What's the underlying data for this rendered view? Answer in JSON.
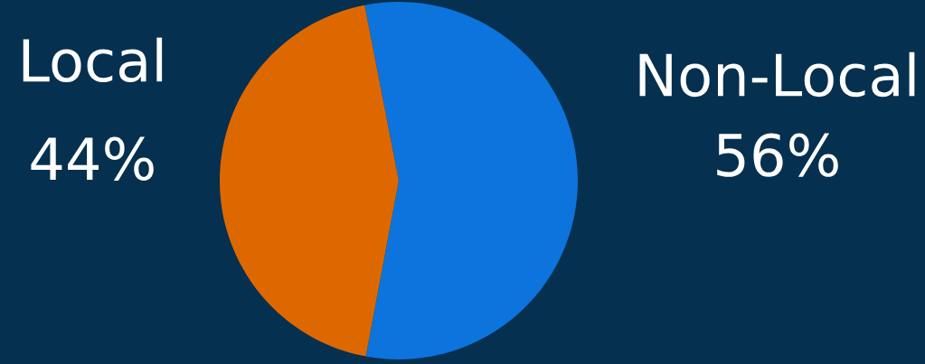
{
  "chart_data": {
    "type": "pie",
    "categories": [
      "Non-Local",
      "Local"
    ],
    "values": [
      56,
      44
    ],
    "colors": [
      "#0c74dc",
      "#de6800"
    ],
    "value_labels": [
      "56%",
      "44%"
    ]
  }
}
